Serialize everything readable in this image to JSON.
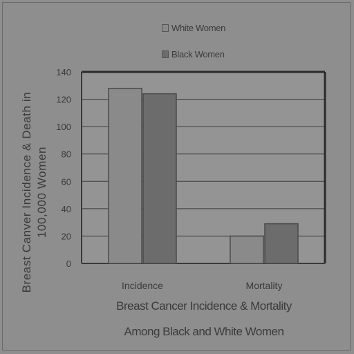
{
  "chart_data": {
    "type": "bar",
    "categories": [
      "Incidence",
      "Mortality"
    ],
    "series": [
      {
        "name": "White Women",
        "values": [
          128,
          20
        ],
        "color": "#8a8a8a"
      },
      {
        "name": "Black Women",
        "values": [
          124,
          29
        ],
        "color": "#6c6c6c"
      }
    ],
    "ylabel": "Breast Canver Incidence & Death in 100,000 Women",
    "xlabel_lines": [
      "Breast Cancer Incidence & Mortality",
      "Among Black and White Women"
    ],
    "ylim": [
      0,
      140
    ],
    "yticks": [
      0,
      20,
      40,
      60,
      80,
      100,
      120,
      140
    ],
    "grid": true,
    "legend_position": "top"
  }
}
